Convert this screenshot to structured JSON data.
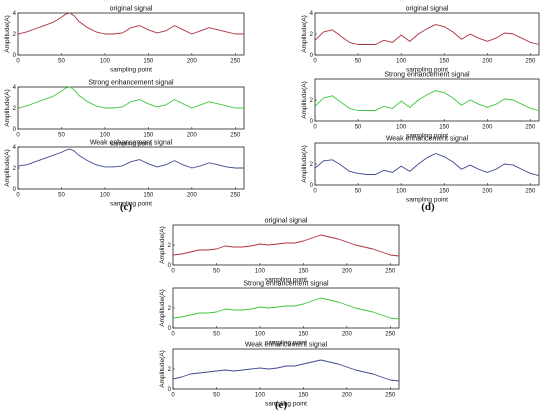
{
  "chart_data": [
    {
      "panel": "(c)",
      "plots": [
        {
          "type": "line",
          "title": "original signal",
          "xlabel": "sampling point",
          "ylabel": "Amplitude(A)",
          "xlim": [
            0,
            260
          ],
          "ylim": [
            0,
            4
          ],
          "xticks": [
            "0",
            "50",
            "100",
            "150",
            "200",
            "250"
          ],
          "yticks": [
            "0",
            "2",
            "4"
          ],
          "color": "#b03040",
          "x": [
            0,
            10,
            20,
            30,
            40,
            50,
            55,
            60,
            65,
            70,
            80,
            90,
            100,
            110,
            120,
            130,
            140,
            150,
            160,
            170,
            180,
            190,
            200,
            210,
            220,
            230,
            240,
            250,
            260
          ],
          "y": [
            2.0,
            2.2,
            2.5,
            2.8,
            3.1,
            3.6,
            3.9,
            4.0,
            3.7,
            3.2,
            2.6,
            2.2,
            2.0,
            2.0,
            2.1,
            2.6,
            2.8,
            2.4,
            2.1,
            2.3,
            2.8,
            2.4,
            2.0,
            2.3,
            2.6,
            2.4,
            2.2,
            2.0,
            2.0
          ]
        },
        {
          "type": "line",
          "title": "Strong enhancement signal",
          "xlabel": "sampling point",
          "ylabel": "Amplitude(A)",
          "xlim": [
            0,
            260
          ],
          "ylim": [
            0,
            4
          ],
          "xticks": [
            "0",
            "50",
            "100",
            "150",
            "200",
            "250"
          ],
          "yticks": [
            "0",
            "2",
            "4"
          ],
          "color": "#3cc83c",
          "x": [
            0,
            10,
            20,
            30,
            40,
            50,
            55,
            60,
            65,
            70,
            80,
            90,
            100,
            110,
            120,
            130,
            140,
            150,
            160,
            170,
            180,
            190,
            200,
            210,
            220,
            230,
            240,
            250,
            260
          ],
          "y": [
            2.0,
            2.2,
            2.5,
            2.8,
            3.1,
            3.6,
            3.9,
            4.0,
            3.7,
            3.2,
            2.6,
            2.2,
            2.0,
            2.0,
            2.1,
            2.6,
            2.8,
            2.4,
            2.1,
            2.3,
            2.8,
            2.4,
            2.0,
            2.3,
            2.6,
            2.4,
            2.2,
            2.0,
            2.0
          ]
        },
        {
          "type": "line",
          "title": "Weak enhancement signal",
          "xlabel": "sampling point",
          "ylabel": "Amplitude(A)",
          "xlim": [
            0,
            260
          ],
          "ylim": [
            0,
            4
          ],
          "xticks": [
            "0",
            "50",
            "100",
            "150",
            "200",
            "250"
          ],
          "yticks": [
            "0",
            "2",
            "4"
          ],
          "color": "#404890",
          "x": [
            0,
            10,
            20,
            30,
            40,
            50,
            55,
            60,
            65,
            70,
            80,
            90,
            100,
            110,
            120,
            130,
            140,
            150,
            160,
            170,
            180,
            190,
            200,
            210,
            220,
            230,
            240,
            250,
            260
          ],
          "y": [
            2.2,
            2.3,
            2.6,
            2.9,
            3.2,
            3.5,
            3.7,
            3.8,
            3.6,
            3.2,
            2.7,
            2.3,
            2.1,
            2.1,
            2.2,
            2.6,
            2.8,
            2.4,
            2.1,
            2.3,
            2.7,
            2.3,
            2.0,
            2.2,
            2.5,
            2.3,
            2.1,
            2.0,
            2.0
          ]
        }
      ]
    },
    {
      "panel": "(d)",
      "plots": [
        {
          "type": "line",
          "title": "original signal",
          "xlabel": "sampling point",
          "ylabel": "Amplitude(A)",
          "xlim": [
            0,
            260
          ],
          "ylim": [
            0,
            4
          ],
          "xticks": [
            "0",
            "50",
            "100",
            "150",
            "200",
            "250"
          ],
          "yticks": [
            "0",
            "2",
            "4"
          ],
          "color": "#b03040",
          "x": [
            0,
            10,
            20,
            30,
            40,
            50,
            60,
            70,
            80,
            90,
            100,
            110,
            120,
            130,
            140,
            150,
            160,
            170,
            180,
            190,
            200,
            210,
            220,
            230,
            240,
            250,
            260
          ],
          "y": [
            1.4,
            2.2,
            2.4,
            1.8,
            1.2,
            1.0,
            1.0,
            1.0,
            1.4,
            1.2,
            1.9,
            1.3,
            2.0,
            2.5,
            2.9,
            2.7,
            2.2,
            1.5,
            2.0,
            1.6,
            1.3,
            1.6,
            2.1,
            2.0,
            1.6,
            1.2,
            1.0
          ]
        },
        {
          "type": "line",
          "title": "Strong enhancement signal",
          "xlabel": "sampling point",
          "ylabel": "Amplitude(A)",
          "xlim": [
            0,
            260
          ],
          "ylim": [
            0,
            4
          ],
          "xticks": [
            "0",
            "50",
            "100",
            "150",
            "200",
            "250"
          ],
          "yticks": [
            "0",
            "2"
          ],
          "color": "#3cc83c",
          "x": [
            0,
            10,
            20,
            30,
            40,
            50,
            60,
            70,
            80,
            90,
            100,
            110,
            120,
            130,
            140,
            150,
            160,
            170,
            180,
            190,
            200,
            210,
            220,
            230,
            240,
            250,
            260
          ],
          "y": [
            1.4,
            2.2,
            2.4,
            1.8,
            1.2,
            1.0,
            1.0,
            1.0,
            1.4,
            1.2,
            1.9,
            1.3,
            2.0,
            2.5,
            2.9,
            2.7,
            2.2,
            1.5,
            2.0,
            1.6,
            1.3,
            1.6,
            2.1,
            2.0,
            1.6,
            1.2,
            1.0
          ]
        },
        {
          "type": "line",
          "title": "Weak enhancement signal",
          "xlabel": "sampling point",
          "ylabel": "Amplitude(A)",
          "xlim": [
            0,
            260
          ],
          "ylim": [
            0,
            4
          ],
          "xticks": [
            "0",
            "50",
            "100",
            "150",
            "200",
            "250"
          ],
          "yticks": [
            "0",
            "2"
          ],
          "color": "#404890",
          "x": [
            0,
            10,
            20,
            30,
            40,
            50,
            60,
            70,
            80,
            90,
            100,
            110,
            120,
            130,
            140,
            150,
            160,
            170,
            180,
            190,
            200,
            210,
            220,
            230,
            240,
            250,
            260
          ],
          "y": [
            1.6,
            2.3,
            2.4,
            1.9,
            1.3,
            1.1,
            1.0,
            1.0,
            1.4,
            1.2,
            1.8,
            1.3,
            2.0,
            2.6,
            3.0,
            2.7,
            2.2,
            1.5,
            1.9,
            1.5,
            1.2,
            1.5,
            2.0,
            1.9,
            1.5,
            1.1,
            0.9
          ]
        }
      ]
    },
    {
      "panel": "(e)",
      "plots": [
        {
          "type": "line",
          "title": "original signal",
          "xlabel": "sampling point",
          "ylabel": "Amplitude(A)",
          "xlim": [
            0,
            260
          ],
          "ylim": [
            0,
            4
          ],
          "xticks": [
            "0",
            "50",
            "100",
            "150",
            "200",
            "250"
          ],
          "yticks": [
            "0",
            "2"
          ],
          "color": "#b03040",
          "x": [
            0,
            10,
            20,
            30,
            40,
            50,
            60,
            70,
            80,
            90,
            100,
            110,
            120,
            130,
            140,
            150,
            160,
            170,
            180,
            190,
            200,
            210,
            220,
            230,
            240,
            250,
            260
          ],
          "y": [
            1.0,
            1.1,
            1.3,
            1.5,
            1.5,
            1.6,
            1.9,
            1.8,
            1.8,
            1.9,
            2.1,
            2.0,
            2.1,
            2.2,
            2.2,
            2.4,
            2.7,
            3.0,
            2.8,
            2.6,
            2.3,
            2.0,
            1.8,
            1.6,
            1.3,
            1.0,
            0.9
          ]
        },
        {
          "type": "line",
          "title": "Strong enhancement signal",
          "xlabel": "sampling point",
          "ylabel": "Amplitude(A)",
          "xlim": [
            0,
            260
          ],
          "ylim": [
            0,
            4
          ],
          "xticks": [
            "0",
            "50",
            "100",
            "150",
            "200",
            "250"
          ],
          "yticks": [
            "0",
            "2"
          ],
          "color": "#3cc83c",
          "x": [
            0,
            10,
            20,
            30,
            40,
            50,
            60,
            70,
            80,
            90,
            100,
            110,
            120,
            130,
            140,
            150,
            160,
            170,
            180,
            190,
            200,
            210,
            220,
            230,
            240,
            250,
            260
          ],
          "y": [
            1.0,
            1.1,
            1.3,
            1.5,
            1.5,
            1.6,
            1.9,
            1.8,
            1.8,
            1.9,
            2.1,
            2.0,
            2.1,
            2.2,
            2.2,
            2.4,
            2.7,
            3.0,
            2.8,
            2.6,
            2.3,
            2.0,
            1.8,
            1.6,
            1.3,
            1.0,
            0.9
          ]
        },
        {
          "type": "line",
          "title": "Weak enhancement signal",
          "xlabel": "sampling point",
          "ylabel": "Amplitude(A)",
          "xlim": [
            0,
            260
          ],
          "ylim": [
            0,
            4
          ],
          "xticks": [
            "0",
            "50",
            "100",
            "150",
            "200",
            "250"
          ],
          "yticks": [
            "0",
            "2"
          ],
          "color": "#404890",
          "x": [
            0,
            10,
            20,
            30,
            40,
            50,
            60,
            70,
            80,
            90,
            100,
            110,
            120,
            130,
            140,
            150,
            160,
            170,
            180,
            190,
            200,
            210,
            220,
            230,
            240,
            250,
            260
          ],
          "y": [
            1.0,
            1.2,
            1.5,
            1.6,
            1.7,
            1.8,
            1.9,
            1.8,
            1.9,
            2.0,
            2.1,
            2.0,
            2.1,
            2.3,
            2.3,
            2.5,
            2.7,
            2.9,
            2.7,
            2.5,
            2.2,
            1.9,
            1.7,
            1.5,
            1.2,
            0.9,
            0.8
          ]
        }
      ]
    }
  ]
}
